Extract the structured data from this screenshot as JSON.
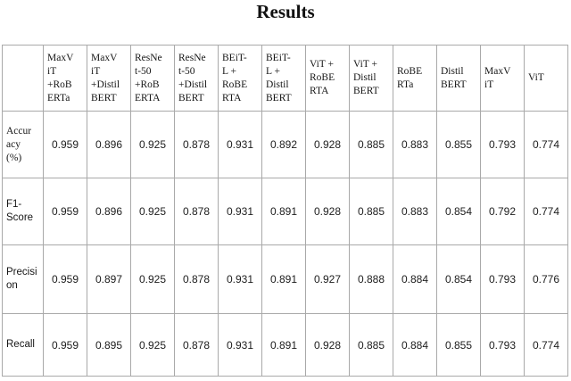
{
  "title": "Results",
  "table": {
    "corner_label": "",
    "columns": [
      "MaxV\niT\n+RoB\nERTa",
      "MaxV\niT\n+Distil\nBERT",
      "ResNe\nt-50\n+RoB\nERTA",
      "ResNe\nt-50\n+Distil\nBERT",
      "BEiT-\nL +\nRoBE\nRTA",
      "BEiT-\nL +\nDistil\nBERT",
      "ViT +\nRoBE\nRTA",
      "ViT +\nDistil\nBERT",
      "RoBE\nRTa",
      "Distil\nBERT",
      "MaxV\niT",
      "ViT"
    ],
    "rows": [
      {
        "label": "Accur\nacy\n(%)",
        "values": [
          "0.959",
          "0.896",
          "0.925",
          "0.878",
          "0.931",
          "0.892",
          "0.928",
          "0.885",
          "0.883",
          "0.855",
          "0.793",
          "0.774"
        ]
      },
      {
        "label": "F1-\nScore",
        "values": [
          "0.959",
          "0.896",
          "0.925",
          "0.878",
          "0.931",
          "0.891",
          "0.928",
          "0.885",
          "0.883",
          "0.854",
          "0.792",
          "0.774"
        ]
      },
      {
        "label": "Precisi\non",
        "values": [
          "0.959",
          "0.897",
          "0.925",
          "0.878",
          "0.931",
          "0.891",
          "0.927",
          "0.888",
          "0.884",
          "0.854",
          "0.793",
          "0.776"
        ]
      },
      {
        "label": "Recall",
        "values": [
          "0.959",
          "0.895",
          "0.925",
          "0.878",
          "0.931",
          "0.891",
          "0.928",
          "0.885",
          "0.884",
          "0.855",
          "0.793",
          "0.774"
        ]
      }
    ]
  },
  "chart_data": {
    "type": "table",
    "title": "Results",
    "columns": [
      "MaxViT +RoBERTa",
      "MaxViT +DistilBERT",
      "ResNet-50 +RoBERTA",
      "ResNet-50 +DistilBERT",
      "BEiT-L + RoBERTA",
      "BEiT-L + DistilBERT",
      "ViT + RoBERTA",
      "ViT + DistilBERT",
      "RoBERTa",
      "DistilBERT",
      "MaxViT",
      "ViT"
    ],
    "rows": [
      {
        "metric": "Accuracy (%)",
        "values": [
          0.959,
          0.896,
          0.925,
          0.878,
          0.931,
          0.892,
          0.928,
          0.885,
          0.883,
          0.855,
          0.793,
          0.774
        ]
      },
      {
        "metric": "F1-Score",
        "values": [
          0.959,
          0.896,
          0.925,
          0.878,
          0.931,
          0.891,
          0.928,
          0.885,
          0.883,
          0.854,
          0.792,
          0.774
        ]
      },
      {
        "metric": "Precision",
        "values": [
          0.959,
          0.897,
          0.925,
          0.878,
          0.931,
          0.891,
          0.927,
          0.888,
          0.884,
          0.854,
          0.793,
          0.776
        ]
      },
      {
        "metric": "Recall",
        "values": [
          0.959,
          0.895,
          0.925,
          0.878,
          0.931,
          0.891,
          0.928,
          0.885,
          0.884,
          0.855,
          0.793,
          0.774
        ]
      }
    ]
  }
}
